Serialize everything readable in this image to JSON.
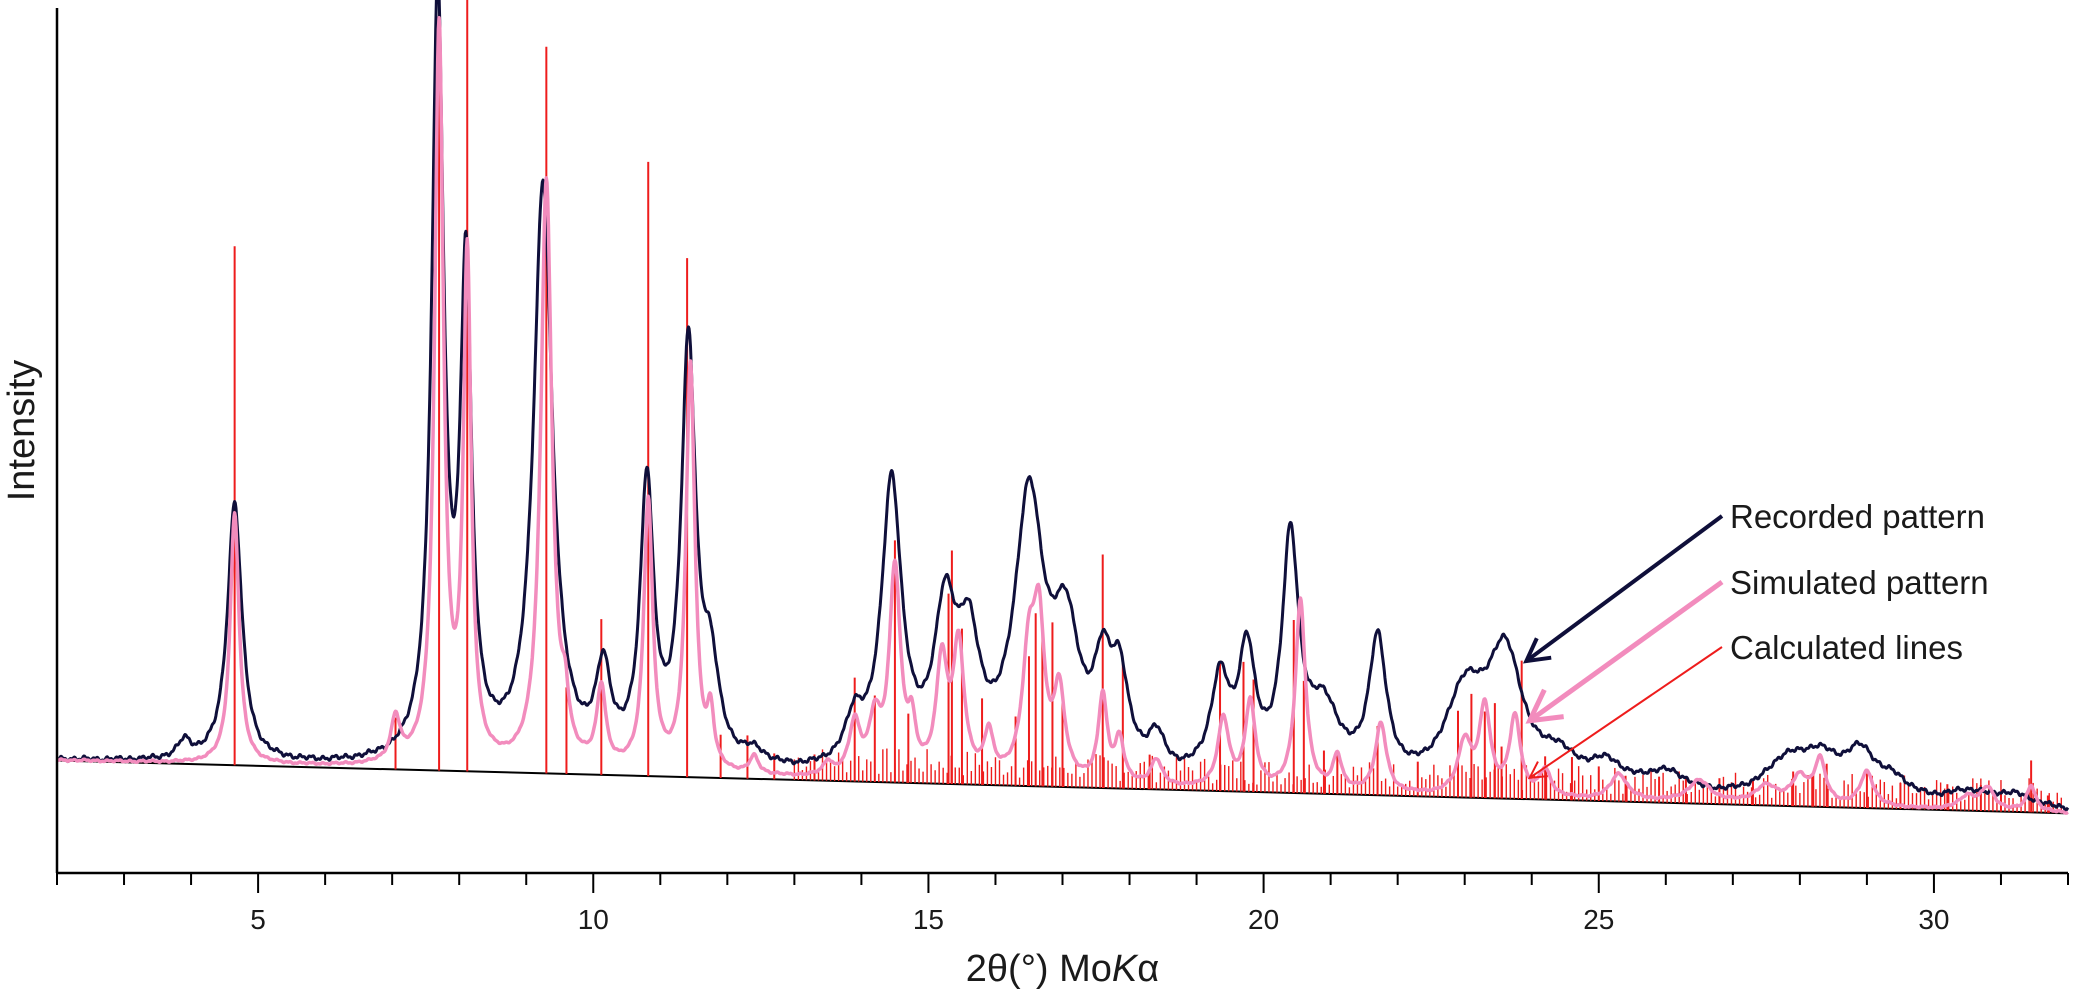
{
  "chart_data": {
    "type": "line",
    "xlabel_parts": [
      "2θ(°) Mo",
      "K",
      "α"
    ],
    "ylabel": "Intensity",
    "xlim": [
      2,
      32
    ],
    "ylim": [
      0,
      100
    ],
    "x_ticks": [
      5,
      10,
      15,
      20,
      25,
      30
    ],
    "y_tick_labels": "none",
    "grid": false,
    "legend_placement": "right, with arrows pointing to curves near 2θ ≈ 23.8",
    "legend": [
      {
        "label": "Recorded pattern",
        "color": "#0f0f3a"
      },
      {
        "label": "Simulated pattern",
        "color": "#f28cbd"
      },
      {
        "label": "Calculated lines",
        "color": "#ee1c1c"
      }
    ],
    "background": {
      "x": [
        2,
        32
      ],
      "y": [
        13.0,
        6.9
      ]
    },
    "series": [
      {
        "name": "Recorded pattern",
        "color": "#0f0f3a",
        "peaks": [
          [
            3.9,
            2.0,
            0.12
          ],
          [
            4.65,
            30,
            0.13
          ],
          [
            7.68,
            88,
            0.11
          ],
          [
            8.1,
            55,
            0.1
          ],
          [
            9.25,
            67,
            0.17
          ],
          [
            10.15,
            10,
            0.13
          ],
          [
            10.8,
            32,
            0.12
          ],
          [
            11.42,
            48,
            0.13
          ],
          [
            11.75,
            10,
            0.15
          ],
          [
            12.4,
            1.5,
            0.2
          ],
          [
            13.9,
            5,
            0.17
          ],
          [
            14.45,
            33,
            0.18
          ],
          [
            15.25,
            17,
            0.2
          ],
          [
            15.6,
            13,
            0.2
          ],
          [
            16.5,
            31,
            0.26
          ],
          [
            17.05,
            15,
            0.25
          ],
          [
            17.6,
            10,
            0.16
          ],
          [
            17.85,
            10,
            0.16
          ],
          [
            18.4,
            4,
            0.15
          ],
          [
            19.35,
            11,
            0.17
          ],
          [
            19.75,
            14,
            0.15
          ],
          [
            20.4,
            27,
            0.15
          ],
          [
            20.9,
            8,
            0.3
          ],
          [
            21.7,
            16,
            0.16
          ],
          [
            23.0,
            10,
            0.35
          ],
          [
            23.6,
            15,
            0.33
          ],
          [
            24.4,
            3,
            0.3
          ],
          [
            25.1,
            3,
            0.35
          ],
          [
            26.0,
            2.5,
            0.4
          ],
          [
            27.8,
            4,
            0.4
          ],
          [
            28.3,
            4,
            0.35
          ],
          [
            28.9,
            5,
            0.3
          ],
          [
            29.4,
            2,
            0.3
          ],
          [
            30.5,
            1.5,
            0.4
          ],
          [
            31.2,
            1.5,
            0.4
          ]
        ]
      },
      {
        "name": "Simulated pattern",
        "color": "#f28cbd",
        "peaks": [
          [
            4.65,
            29,
            0.08
          ],
          [
            7.05,
            5,
            0.08
          ],
          [
            7.7,
            85,
            0.08
          ],
          [
            8.12,
            58,
            0.07
          ],
          [
            9.3,
            68,
            0.1
          ],
          [
            9.58,
            5,
            0.06
          ],
          [
            10.12,
            9,
            0.08
          ],
          [
            10.82,
            31,
            0.08
          ],
          [
            11.45,
            47,
            0.08
          ],
          [
            11.75,
            6,
            0.06
          ],
          [
            12.4,
            2,
            0.08
          ],
          [
            13.5,
            1.5,
            0.08
          ],
          [
            13.9,
            6,
            0.1
          ],
          [
            14.2,
            6,
            0.1
          ],
          [
            14.5,
            24,
            0.1
          ],
          [
            14.75,
            5,
            0.07
          ],
          [
            15.2,
            13,
            0.1
          ],
          [
            15.45,
            15,
            0.1
          ],
          [
            15.9,
            5,
            0.08
          ],
          [
            16.5,
            14,
            0.12
          ],
          [
            16.65,
            16,
            0.1
          ],
          [
            16.95,
            10,
            0.1
          ],
          [
            17.6,
            10,
            0.08
          ],
          [
            17.85,
            5,
            0.08
          ],
          [
            18.4,
            3,
            0.1
          ],
          [
            19.4,
            8,
            0.1
          ],
          [
            19.8,
            10,
            0.09
          ],
          [
            20.55,
            22,
            0.09
          ],
          [
            21.1,
            4,
            0.08
          ],
          [
            21.75,
            8,
            0.1
          ],
          [
            23.0,
            6,
            0.12
          ],
          [
            23.3,
            10,
            0.1
          ],
          [
            23.75,
            9,
            0.1
          ],
          [
            24.2,
            3,
            0.1
          ],
          [
            25.3,
            3,
            0.15
          ],
          [
            26.5,
            2.5,
            0.2
          ],
          [
            27.5,
            2,
            0.2
          ],
          [
            28.0,
            3,
            0.15
          ],
          [
            28.3,
            5,
            0.1
          ],
          [
            29.0,
            4,
            0.12
          ],
          [
            30.5,
            1.5,
            0.15
          ],
          [
            30.8,
            2.5,
            0.12
          ],
          [
            31.45,
            3,
            0.08
          ]
        ]
      }
    ],
    "calculated_lines": [
      [
        4.65,
        60
      ],
      [
        7.05,
        6
      ],
      [
        7.7,
        90
      ],
      [
        8.12,
        93
      ],
      [
        9.3,
        84
      ],
      [
        9.6,
        10
      ],
      [
        10.12,
        18
      ],
      [
        10.82,
        71
      ],
      [
        11.4,
        60
      ],
      [
        11.9,
        5
      ],
      [
        12.3,
        5
      ],
      [
        12.7,
        3
      ],
      [
        13.3,
        3
      ],
      [
        13.9,
        12
      ],
      [
        14.2,
        10
      ],
      [
        14.5,
        28
      ],
      [
        14.7,
        8
      ],
      [
        15.3,
        22
      ],
      [
        15.35,
        27
      ],
      [
        15.5,
        18
      ],
      [
        15.8,
        10
      ],
      [
        16.3,
        8
      ],
      [
        16.5,
        15
      ],
      [
        16.6,
        20
      ],
      [
        16.7,
        18
      ],
      [
        16.85,
        19
      ],
      [
        17.0,
        11
      ],
      [
        17.6,
        27
      ],
      [
        17.9,
        15
      ],
      [
        18.3,
        4
      ],
      [
        19.35,
        15
      ],
      [
        19.7,
        15
      ],
      [
        19.85,
        13
      ],
      [
        20.45,
        20
      ],
      [
        20.6,
        13
      ],
      [
        20.9,
        5
      ],
      [
        21.1,
        5
      ],
      [
        21.7,
        8
      ],
      [
        22.3,
        4
      ],
      [
        22.9,
        10
      ],
      [
        23.1,
        12
      ],
      [
        23.3,
        10
      ],
      [
        23.45,
        11
      ],
      [
        23.55,
        6
      ],
      [
        23.85,
        16
      ],
      [
        24.2,
        5
      ],
      [
        24.6,
        5
      ],
      [
        25.0,
        4
      ],
      [
        25.4,
        3
      ],
      [
        25.9,
        3
      ],
      [
        26.3,
        3
      ],
      [
        26.8,
        3
      ],
      [
        27.3,
        3
      ],
      [
        27.9,
        4
      ],
      [
        28.2,
        4
      ],
      [
        28.4,
        5
      ],
      [
        29.0,
        4
      ],
      [
        29.5,
        3
      ],
      [
        30.2,
        3
      ],
      [
        30.7,
        3
      ],
      [
        31.0,
        2
      ],
      [
        31.45,
        6
      ],
      [
        31.7,
        2
      ]
    ],
    "calculated_lines_note": "dense additional minor lines between 2θ = 13 and 32"
  }
}
